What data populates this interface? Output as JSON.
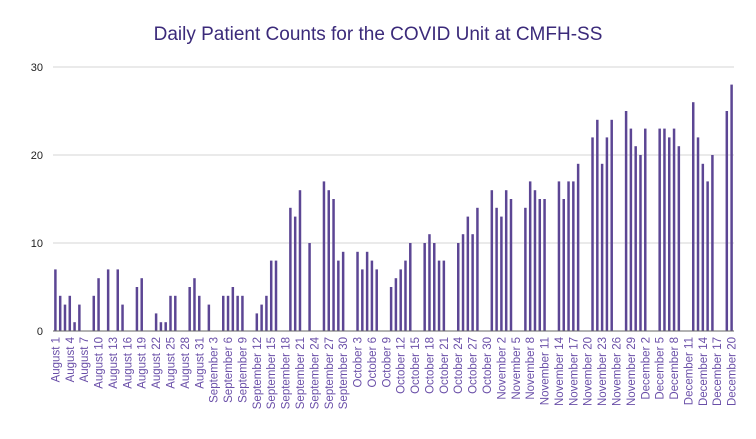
{
  "colors": {
    "bar": "#5c4694",
    "title": "#3b2a7a",
    "xtick": "#6a4fa8",
    "grid": "#d4d4d4",
    "axis": "#666666"
  },
  "chart_data": {
    "type": "bar",
    "title": "Daily Patient Counts for the COVID Unit at CMFH-SS",
    "xlabel": "",
    "ylabel": "",
    "ylim": [
      0,
      30
    ],
    "yticks": [
      0,
      10,
      20,
      30
    ],
    "grid": true,
    "legend": "none",
    "start_date": "2020-08-01",
    "tick_labels": [
      "August 1",
      "August 4",
      "August 7",
      "August 10",
      "August 13",
      "August 16",
      "August 19",
      "August 22",
      "August 25",
      "August 28",
      "August 31",
      "September 3",
      "September 6",
      "September 9",
      "September 12",
      "September 15",
      "September 18",
      "September 21",
      "September 24",
      "September 27",
      "September 30",
      "October 3",
      "October 6",
      "October 9",
      "October 12",
      "October 15",
      "October 18",
      "October 21",
      "October 24",
      "October 27",
      "October 30",
      "November 2",
      "November 5",
      "November 8",
      "November 11",
      "November 14",
      "November 17",
      "November 20",
      "November 23",
      "November 26",
      "November 29",
      "December 2",
      "December 5",
      "December 8",
      "December 11",
      "December 14",
      "December 17",
      "December 20"
    ],
    "values": [
      7,
      4,
      3,
      4,
      1,
      3,
      0,
      0,
      4,
      6,
      0,
      7,
      0,
      7,
      3,
      0,
      0,
      5,
      6,
      0,
      0,
      2,
      1,
      1,
      4,
      4,
      0,
      0,
      5,
      6,
      4,
      0,
      3,
      0,
      0,
      4,
      4,
      5,
      4,
      4,
      0,
      0,
      2,
      3,
      4,
      8,
      8,
      0,
      0,
      14,
      13,
      16,
      0,
      10,
      0,
      0,
      17,
      16,
      15,
      8,
      9,
      0,
      0,
      9,
      7,
      9,
      8,
      7,
      0,
      0,
      5,
      6,
      7,
      8,
      10,
      0,
      0,
      10,
      11,
      10,
      8,
      8,
      0,
      0,
      10,
      11,
      13,
      11,
      14,
      0,
      0,
      16,
      14,
      13,
      16,
      15,
      0,
      0,
      14,
      17,
      16,
      15,
      15,
      0,
      0,
      17,
      15,
      17,
      17,
      19,
      0,
      0,
      22,
      24,
      19,
      22,
      24,
      0,
      0,
      25,
      23,
      21,
      20,
      23,
      0,
      0,
      23,
      23,
      22,
      23,
      21,
      0,
      0,
      26,
      22,
      19,
      17,
      20,
      0,
      0,
      25,
      28
    ]
  }
}
